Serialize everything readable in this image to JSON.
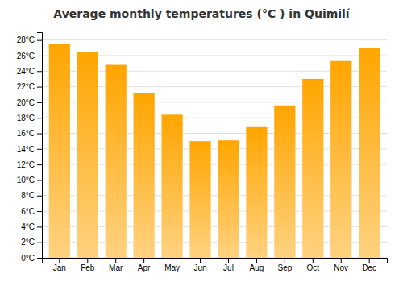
{
  "chart_data": {
    "type": "bar",
    "title": "Average monthly temperatures (°C ) in Quimilí",
    "categories": [
      "Jan",
      "Feb",
      "Mar",
      "Apr",
      "May",
      "Jun",
      "Jul",
      "Aug",
      "Sep",
      "Oct",
      "Nov",
      "Dec"
    ],
    "values": [
      27.5,
      26.5,
      24.8,
      21.2,
      18.4,
      15.0,
      15.1,
      16.8,
      19.6,
      23.0,
      25.3,
      27.0
    ],
    "color": "#FFA500",
    "ylim": [
      0,
      29
    ],
    "yticks": [
      {
        "value": 0,
        "label": "0°C"
      },
      {
        "value": 2,
        "label": "2°C"
      },
      {
        "value": 4,
        "label": "4°C"
      },
      {
        "value": 6,
        "label": "6°C"
      },
      {
        "value": 8,
        "label": "8°C"
      },
      {
        "value": 10,
        "label": "10°C"
      },
      {
        "value": 12,
        "label": "12°C"
      },
      {
        "value": 14,
        "label": "14°C"
      },
      {
        "value": 16,
        "label": "16°C"
      },
      {
        "value": 18,
        "label": "18°C"
      },
      {
        "value": 20,
        "label": "20°C"
      },
      {
        "value": 22,
        "label": "22°C"
      },
      {
        "value": 24,
        "label": "24°C"
      },
      {
        "value": 26,
        "label": "26°C"
      },
      {
        "value": 28,
        "label": "28°C"
      }
    ],
    "grid": true
  }
}
